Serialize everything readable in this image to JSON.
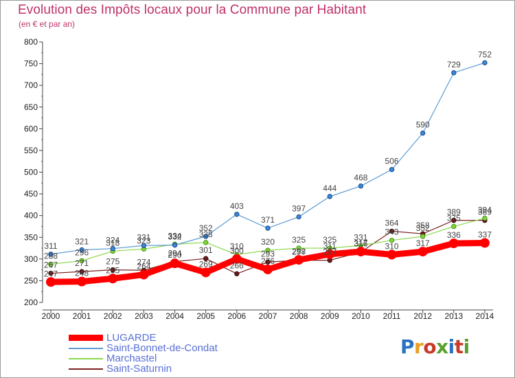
{
  "title": "Evolution des Impôts locaux pour la Commune par Habitant",
  "subtitle": "(en € et par an)",
  "logo": {
    "text": "Proxiti",
    "colors": [
      "#2b72c2",
      "#e8a020",
      "#c83a2a",
      "#5aa02c",
      "#2b72c2",
      "#c83a2a",
      "#5aa02c"
    ]
  },
  "chart_data": {
    "type": "line",
    "title": "Evolution des Impôts locaux pour la Commune par Habitant",
    "subtitle": "(en € et par an)",
    "x": [
      "2000",
      "2001",
      "2002",
      "2003",
      "2004",
      "2005",
      "2006",
      "2007",
      "2008",
      "2009",
      "2010",
      "2011",
      "2012",
      "2013",
      "2014"
    ],
    "ylim": [
      200,
      800
    ],
    "yticks": [
      200,
      250,
      300,
      350,
      400,
      450,
      500,
      550,
      600,
      650,
      700,
      750,
      800
    ],
    "grid": false,
    "legend_position": "bottom-left",
    "series": [
      {
        "name": "LUGARDE",
        "color": "#ff0000",
        "values": [
          247,
          248,
          255,
          264,
          290,
          269,
          300,
          276,
          298,
          311,
          317,
          310,
          317,
          336,
          337
        ]
      },
      {
        "name": "Saint-Bonnet-de-Condat",
        "color": "#5b9bd5",
        "values": [
          311,
          321,
          324,
          331,
          332,
          352,
          403,
          371,
          397,
          444,
          468,
          506,
          590,
          729,
          752
        ]
      },
      {
        "name": "Marchastel",
        "color": "#88d848",
        "values": [
          288,
          296,
          318,
          323,
          334,
          338,
          310,
          320,
          325,
          325,
          331,
          343,
          352,
          375,
          394
        ]
      },
      {
        "name": "Saint-Saturnin",
        "color": "#7a2020",
        "values": [
          267,
          271,
          275,
          274,
          294,
          301,
          266,
          293,
          297,
          297,
          316,
          364,
          358,
          389,
          389
        ]
      }
    ]
  }
}
